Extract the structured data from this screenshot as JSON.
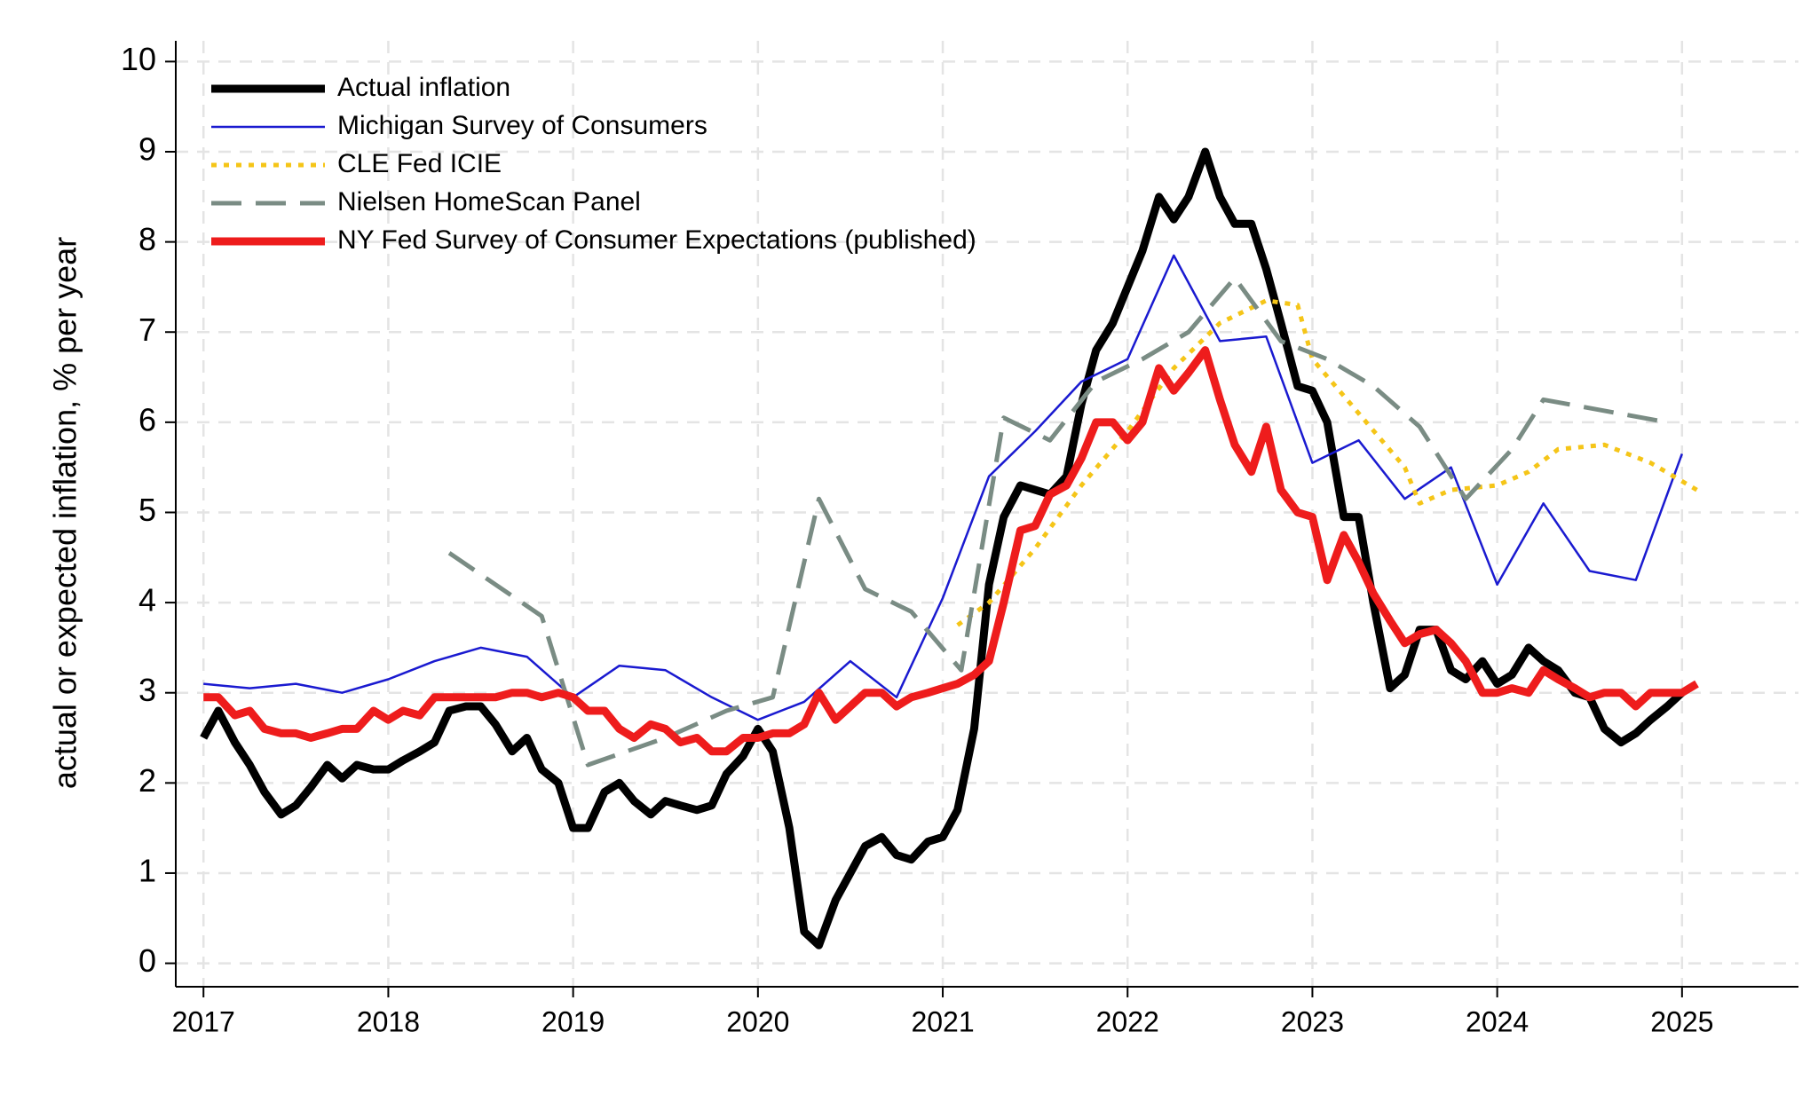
{
  "chart_data": {
    "type": "line",
    "y_label": "actual or expected inflation, % per year",
    "xlim": [
      2016.85,
      2025.63
    ],
    "ylim": [
      -0.26,
      10.23
    ],
    "xticks": [
      2017,
      2018,
      2019,
      2020,
      2021,
      2022,
      2023,
      2024,
      2025
    ],
    "yticks": [
      0,
      1,
      2,
      3,
      4,
      5,
      6,
      7,
      8,
      9,
      10
    ],
    "grid": true,
    "legend": "upper-left",
    "series": [
      {
        "name": "Actual inflation",
        "color": "#000000",
        "width": 9,
        "style": "solid",
        "x": [
          2017.0,
          2017.08,
          2017.17,
          2017.25,
          2017.33,
          2017.42,
          2017.5,
          2017.58,
          2017.67,
          2017.75,
          2017.83,
          2017.92,
          2018.0,
          2018.08,
          2018.17,
          2018.25,
          2018.33,
          2018.42,
          2018.5,
          2018.58,
          2018.67,
          2018.75,
          2018.83,
          2018.92,
          2019.0,
          2019.08,
          2019.17,
          2019.25,
          2019.33,
          2019.42,
          2019.5,
          2019.58,
          2019.67,
          2019.75,
          2019.83,
          2019.92,
          2020.0,
          2020.08,
          2020.17,
          2020.25,
          2020.33,
          2020.42,
          2020.5,
          2020.58,
          2020.67,
          2020.75,
          2020.83,
          2020.92,
          2021.0,
          2021.08,
          2021.17,
          2021.25,
          2021.33,
          2021.42,
          2021.5,
          2021.58,
          2021.67,
          2021.75,
          2021.83,
          2021.92,
          2022.0,
          2022.08,
          2022.17,
          2022.25,
          2022.33,
          2022.42,
          2022.5,
          2022.58,
          2022.67,
          2022.75,
          2022.83,
          2022.92,
          2023.0,
          2023.08,
          2023.17,
          2023.25,
          2023.33,
          2023.42,
          2023.5,
          2023.58,
          2023.67,
          2023.75,
          2023.83,
          2023.92,
          2024.0,
          2024.08,
          2024.17,
          2024.25,
          2024.33,
          2024.42,
          2024.5,
          2024.58,
          2024.67,
          2024.75,
          2024.83,
          2024.92,
          2025.0
        ],
        "values": [
          2.5,
          2.8,
          2.45,
          2.2,
          1.9,
          1.65,
          1.75,
          1.95,
          2.2,
          2.05,
          2.2,
          2.15,
          2.15,
          2.25,
          2.35,
          2.45,
          2.8,
          2.85,
          2.85,
          2.65,
          2.35,
          2.5,
          2.15,
          2.0,
          1.5,
          1.5,
          1.9,
          2.0,
          1.8,
          1.65,
          1.8,
          1.75,
          1.7,
          1.75,
          2.1,
          2.3,
          2.6,
          2.35,
          1.5,
          0.35,
          0.2,
          0.7,
          1.0,
          1.3,
          1.4,
          1.2,
          1.15,
          1.35,
          1.4,
          1.7,
          2.6,
          4.2,
          4.95,
          5.3,
          5.25,
          5.2,
          5.4,
          6.2,
          6.8,
          7.1,
          7.5,
          7.9,
          8.5,
          8.25,
          8.5,
          9.0,
          8.5,
          8.2,
          8.2,
          7.7,
          7.1,
          6.4,
          6.35,
          6.0,
          4.95,
          4.95,
          4.0,
          3.05,
          3.2,
          3.7,
          3.7,
          3.25,
          3.15,
          3.35,
          3.1,
          3.2,
          3.5,
          3.35,
          3.25,
          3.0,
          2.95,
          2.6,
          2.45,
          2.55,
          2.7,
          2.85,
          3.0
        ]
      },
      {
        "name": "Michigan Survey of Consumers",
        "color": "#1a1ad0",
        "width": 2.5,
        "style": "solid",
        "x": [
          2017.0,
          2017.25,
          2017.5,
          2017.75,
          2018.0,
          2018.25,
          2018.5,
          2018.75,
          2019.0,
          2019.25,
          2019.5,
          2019.75,
          2020.0,
          2020.25,
          2020.5,
          2020.75,
          2021.0,
          2021.25,
          2021.5,
          2021.75,
          2022.0,
          2022.25,
          2022.5,
          2022.75,
          2023.0,
          2023.25,
          2023.5,
          2023.75,
          2024.0,
          2024.25,
          2024.5,
          2024.75,
          2025.0
        ],
        "values": [
          3.1,
          3.05,
          3.1,
          3.0,
          3.15,
          3.35,
          3.5,
          3.4,
          2.95,
          3.3,
          3.25,
          2.95,
          2.7,
          2.9,
          3.35,
          2.95,
          4.05,
          5.4,
          5.9,
          6.45,
          6.7,
          7.85,
          6.9,
          6.95,
          5.55,
          5.8,
          5.15,
          5.5,
          4.2,
          5.1,
          4.35,
          4.25,
          5.65
        ]
      },
      {
        "name": "CLE Fed ICIE",
        "color": "#f5c518",
        "width": 5,
        "style": "dotted",
        "x": [
          2021.08,
          2021.25,
          2021.5,
          2021.75,
          2022.0,
          2022.25,
          2022.5,
          2022.75,
          2022.92,
          2023.0,
          2023.25,
          2023.5,
          2023.58,
          2023.75,
          2024.0,
          2024.17,
          2024.33,
          2024.58,
          2024.83,
          2025.08
        ],
        "values": [
          3.75,
          4.0,
          4.6,
          5.3,
          5.9,
          6.6,
          7.1,
          7.35,
          7.3,
          6.7,
          6.1,
          5.5,
          5.1,
          5.25,
          5.3,
          5.45,
          5.7,
          5.75,
          5.55,
          5.25
        ]
      },
      {
        "name": "Nielsen HomeScan Panel",
        "color": "#7a8c84",
        "width": 5,
        "style": "dashed",
        "x": [
          2018.33,
          2018.83,
          2019.08,
          2019.5,
          2019.83,
          2020.08,
          2020.33,
          2020.58,
          2020.83,
          2021.1,
          2021.33,
          2021.58,
          2021.83,
          2022.08,
          2022.33,
          2022.58,
          2022.83,
          2023.08,
          2023.33,
          2023.58,
          2023.83,
          2024.08,
          2024.25,
          2024.92
        ],
        "values": [
          4.55,
          3.85,
          2.2,
          2.5,
          2.8,
          2.95,
          5.15,
          4.15,
          3.9,
          3.25,
          6.05,
          5.8,
          6.45,
          6.7,
          7.0,
          7.6,
          6.9,
          6.7,
          6.4,
          5.95,
          5.15,
          5.7,
          6.25,
          6.0
        ]
      },
      {
        "name": "NY Fed Survey of Consumer Expectations (published)",
        "color": "#ee1c1c",
        "width": 9,
        "style": "solid",
        "x": [
          2017.0,
          2017.08,
          2017.17,
          2017.25,
          2017.33,
          2017.42,
          2017.5,
          2017.58,
          2017.67,
          2017.75,
          2017.83,
          2017.92,
          2018.0,
          2018.08,
          2018.17,
          2018.25,
          2018.33,
          2018.42,
          2018.5,
          2018.58,
          2018.67,
          2018.75,
          2018.83,
          2018.92,
          2019.0,
          2019.08,
          2019.17,
          2019.25,
          2019.33,
          2019.42,
          2019.5,
          2019.58,
          2019.67,
          2019.75,
          2019.83,
          2019.92,
          2020.0,
          2020.08,
          2020.17,
          2020.25,
          2020.33,
          2020.42,
          2020.5,
          2020.58,
          2020.67,
          2020.75,
          2020.83,
          2020.92,
          2021.0,
          2021.08,
          2021.17,
          2021.25,
          2021.33,
          2021.42,
          2021.5,
          2021.58,
          2021.67,
          2021.75,
          2021.83,
          2021.92,
          2022.0,
          2022.08,
          2022.17,
          2022.25,
          2022.33,
          2022.42,
          2022.5,
          2022.58,
          2022.67,
          2022.75,
          2022.83,
          2022.92,
          2023.0,
          2023.08,
          2023.17,
          2023.25,
          2023.33,
          2023.42,
          2023.5,
          2023.58,
          2023.67,
          2023.75,
          2023.83,
          2023.92,
          2024.0,
          2024.08,
          2024.17,
          2024.25,
          2024.33,
          2024.42,
          2024.5,
          2024.58,
          2024.67,
          2024.75,
          2024.83,
          2024.92,
          2025.0,
          2025.08
        ],
        "values": [
          2.95,
          2.95,
          2.75,
          2.8,
          2.6,
          2.55,
          2.55,
          2.5,
          2.55,
          2.6,
          2.6,
          2.8,
          2.7,
          2.8,
          2.75,
          2.95,
          2.95,
          2.95,
          2.95,
          2.95,
          3.0,
          3.0,
          2.95,
          3.0,
          2.95,
          2.8,
          2.8,
          2.6,
          2.5,
          2.65,
          2.6,
          2.45,
          2.5,
          2.35,
          2.35,
          2.5,
          2.5,
          2.55,
          2.55,
          2.65,
          3.0,
          2.7,
          2.85,
          3.0,
          3.0,
          2.85,
          2.95,
          3.0,
          3.05,
          3.1,
          3.2,
          3.35,
          4.0,
          4.8,
          4.85,
          5.2,
          5.3,
          5.6,
          6.0,
          6.0,
          5.8,
          6.0,
          6.6,
          6.35,
          6.55,
          6.8,
          6.25,
          5.75,
          5.45,
          5.95,
          5.25,
          5.0,
          4.95,
          4.25,
          4.75,
          4.45,
          4.1,
          3.8,
          3.55,
          3.65,
          3.7,
          3.55,
          3.35,
          3.0,
          3.0,
          3.05,
          3.0,
          3.25,
          3.15,
          3.05,
          2.95,
          3.0,
          3.0,
          2.85,
          3.0,
          3.0,
          3.0,
          3.1
        ]
      }
    ]
  }
}
